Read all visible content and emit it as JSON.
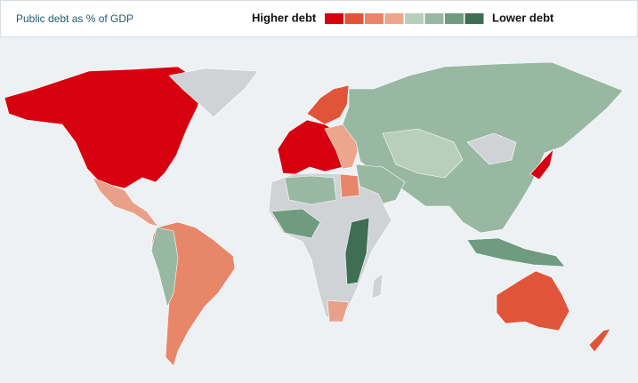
{
  "header": {
    "title": "Public debt as % of GDP"
  },
  "legend": {
    "high_label": "Higher debt",
    "low_label": "Lower debt",
    "colors": [
      "#d7000f",
      "#e0553a",
      "#e8866a",
      "#eba68d",
      "#b8cfbb",
      "#98b8a2",
      "#6f9b80",
      "#3f6e54"
    ]
  }
}
